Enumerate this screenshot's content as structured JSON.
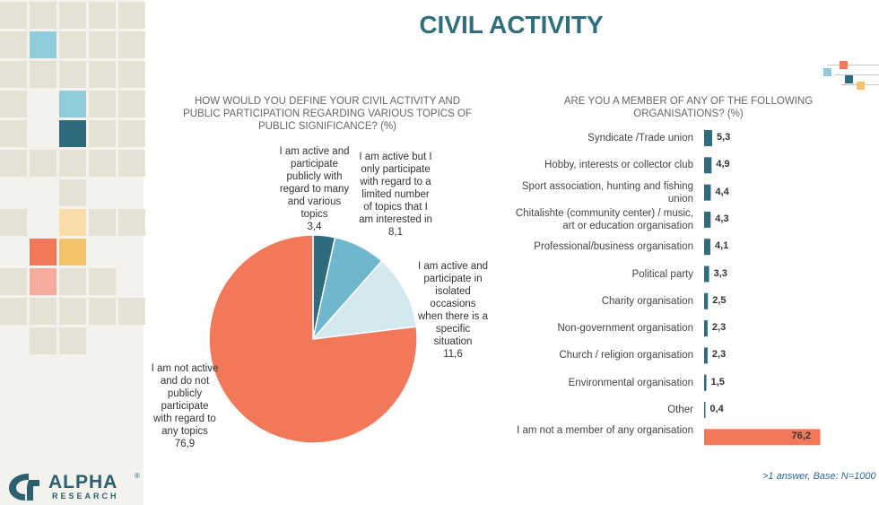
{
  "page": {
    "title": "CIVIL ACTIVITY",
    "footnote": ">1 answer, Base: N=1000",
    "logo_text": "ALPHA",
    "logo_subtext": "RESEARCH",
    "logo_registered": "®"
  },
  "colors": {
    "title": "#2f6e7c",
    "pie_dark": "#2e6b7e",
    "pie_mid": "#6fb7cf",
    "pie_light": "#d3e8ef",
    "pie_salmon": "#f2785a",
    "bar_teal": "#2f6b7e",
    "bar_highlight": "#f2785a",
    "deco_light_blue": "#8fcbdb",
    "deco_dark_blue": "#2e6b7e",
    "deco_orange": "#f5c46a",
    "deco_pale_orange": "#fbdcaa",
    "deco_salmon": "#f2785a",
    "deco_pale_salmon": "#f5aa9c"
  },
  "chart_data": [
    {
      "type": "pie",
      "title": "HOW WOULD YOU DEFINE YOUR CIVIL ACTIVITY AND PUBLIC PARTICIPATION REGARDING VARIOUS TOPICS OF PUBLIC SIGNIFICANCE? (%)",
      "slices": [
        {
          "label": "I am active and participate publicly with regard to many and various topics",
          "value": 3.4,
          "value_text": "3,4"
        },
        {
          "label": "I am active but I only participate with regard to a limited number of topics that I am interested in",
          "value": 8.1,
          "value_text": "8,1"
        },
        {
          "label": "I am active and participate in isolated occasions when there is a specific situation",
          "value": 11.6,
          "value_text": "11,6"
        },
        {
          "label": "I am not active and do not publicly participate with regard to any topics",
          "value": 76.9,
          "value_text": "76,9"
        }
      ]
    },
    {
      "type": "bar",
      "orientation": "horizontal",
      "title": "ARE YOU A MEMBER OF ANY OF THE FOLLOWING ORGANISATIONS? (%)",
      "categories": [
        "Syndicate /Trade union",
        "Hobby, interests or collector club",
        "Sport association, hunting and fishing union",
        "Chitalishte (community center) / music, art or education organisation",
        "Professional/business organisation",
        "Political party",
        "Charity organisation",
        "Non-government organisation",
        "Church / religion organisation",
        "Environmental organisation",
        "Other",
        "I am not a member of any organisation"
      ],
      "values": [
        5.3,
        4.9,
        4.4,
        4.3,
        4.1,
        3.3,
        2.5,
        2.3,
        2.3,
        1.5,
        0.4,
        76.2
      ],
      "value_labels": [
        "5,3",
        "4,9",
        "4,4",
        "4,3",
        "4,1",
        "3,3",
        "2,5",
        "2,3",
        "2,3",
        "1,5",
        "0,4",
        "76,2"
      ]
    }
  ]
}
